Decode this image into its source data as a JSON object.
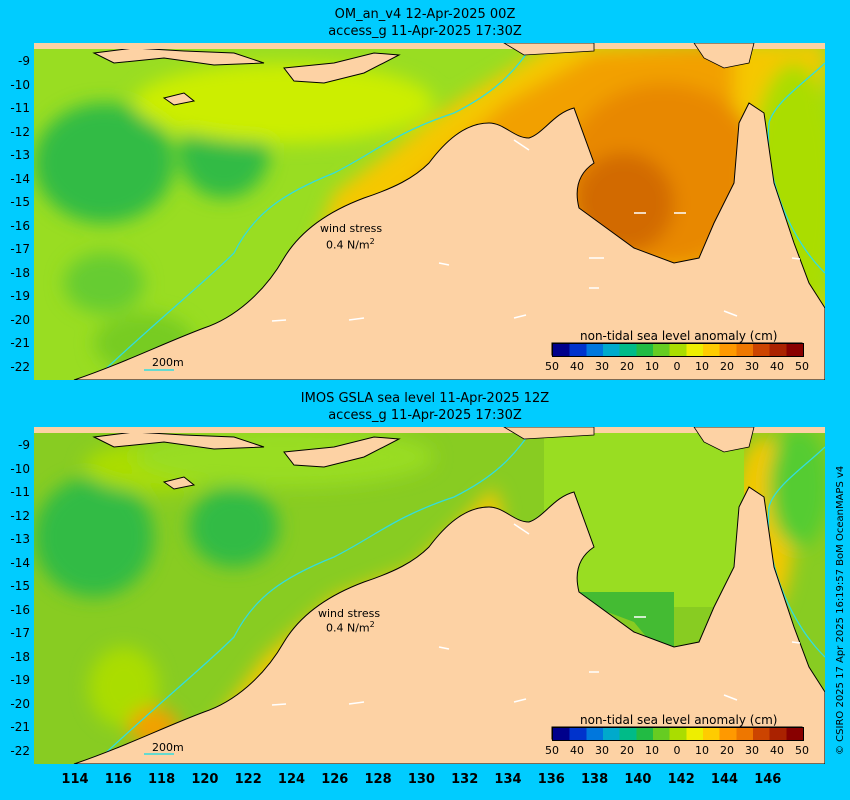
{
  "panels": [
    {
      "title_line1": "OM_an_v4  12-Apr-2025 00Z",
      "title_line2": "access_g 11-Apr-2025 17:30Z"
    },
    {
      "title_line1": "IMOS GSLA sea level  11-Apr-2025 12Z",
      "title_line2": "access_g 11-Apr-2025 17:30Z"
    }
  ],
  "lat_labels": [
    "-9",
    "-10",
    "-11",
    "-12",
    "-13",
    "-14",
    "-15",
    "-16",
    "-17",
    "-18",
    "-19",
    "-20",
    "-21",
    "-22"
  ],
  "lon_labels": [
    "114",
    "116",
    "118",
    "120",
    "122",
    "124",
    "126",
    "128",
    "130",
    "132",
    "134",
    "136",
    "138",
    "140",
    "142",
    "144",
    "146"
  ],
  "wind_stress": {
    "label": "wind stress",
    "value": "0.4 N/m",
    "sup": "2"
  },
  "scale_bar_label": "200m",
  "colorbar": {
    "title": "non-tidal sea level anomaly (cm)",
    "ticks": [
      "50",
      "40",
      "30",
      "20",
      "10",
      "0",
      "10",
      "20",
      "30",
      "40",
      "50"
    ],
    "colors": [
      "#00008b",
      "#0033cc",
      "#0077dd",
      "#00aacc",
      "#00bb88",
      "#22bb44",
      "#66cc22",
      "#aadd00",
      "#eeee00",
      "#ffcc00",
      "#ff9900",
      "#ee7700",
      "#cc4400",
      "#aa2200",
      "#880000"
    ]
  },
  "copyright": "© CSIRO 2025  17 Apr 2025 16:19:57 BoM OceanMAPS v4",
  "colors": {
    "background": "#00ccff",
    "land": "#fdd2a4",
    "coastline": "#000000",
    "isobath": "#33dddd"
  }
}
